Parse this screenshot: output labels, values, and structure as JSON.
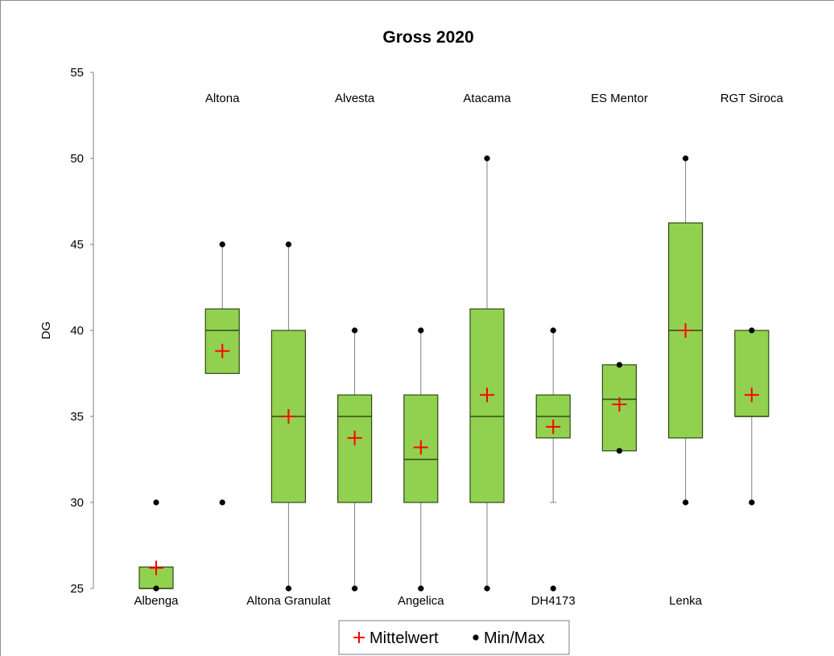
{
  "chart_data": {
    "type": "box",
    "title": "Gross 2020",
    "ylabel": "DG",
    "ylim": [
      25,
      55
    ],
    "yticks": [
      "25",
      "30",
      "35",
      "40",
      "45",
      "50",
      "55"
    ],
    "grid": false,
    "categories": [
      "Albenga",
      "Altona",
      "Altona Granulat",
      "Alvesta",
      "Angelica",
      "Atacama",
      "DH4173",
      "ES Mentor",
      "Lenka",
      "RGT Siroca"
    ],
    "category_label_position": [
      "bottom",
      "top",
      "bottom",
      "top",
      "bottom",
      "top",
      "bottom",
      "top",
      "bottom",
      "top"
    ],
    "boxes": [
      {
        "q1": 25,
        "median": 25,
        "q3": 26.25,
        "whisker_low": 25,
        "whisker_high": 26.25,
        "mean": 26.2,
        "min": 25,
        "max": 30
      },
      {
        "q1": 37.5,
        "median": 40,
        "q3": 41.25,
        "whisker_low": 37.5,
        "whisker_high": 45,
        "mean": 38.8,
        "min": 30,
        "max": 45
      },
      {
        "q1": 30,
        "median": 35,
        "q3": 40,
        "whisker_low": 25,
        "whisker_high": 45,
        "mean": 35,
        "min": 25,
        "max": 45
      },
      {
        "q1": 30,
        "median": 35,
        "q3": 36.25,
        "whisker_low": 25,
        "whisker_high": 40,
        "mean": 33.75,
        "min": 25,
        "max": 40
      },
      {
        "q1": 30,
        "median": 32.5,
        "q3": 36.25,
        "whisker_low": 25,
        "whisker_high": 40,
        "mean": 33.2,
        "min": 25,
        "max": 40
      },
      {
        "q1": 30,
        "median": 35,
        "q3": 41.25,
        "whisker_low": 25,
        "whisker_high": 50,
        "mean": 36.25,
        "min": 25,
        "max": 50
      },
      {
        "q1": 33.75,
        "median": 35,
        "q3": 36.25,
        "whisker_low": 30,
        "whisker_high": 40,
        "mean": 34.4,
        "min": 25,
        "max": 40
      },
      {
        "q1": 33,
        "median": 36,
        "q3": 38,
        "whisker_low": 33,
        "whisker_high": 38,
        "mean": 35.7,
        "min": 33,
        "max": 38
      },
      {
        "q1": 33.75,
        "median": 40,
        "q3": 46.25,
        "whisker_low": 30,
        "whisker_high": 50,
        "mean": 40,
        "min": 30,
        "max": 50
      },
      {
        "q1": 35,
        "median": 35,
        "q3": 40,
        "whisker_low": 30,
        "whisker_high": 40,
        "mean": 36.25,
        "min": 30,
        "max": 40
      }
    ],
    "legend": {
      "placement": "bottom",
      "items": [
        {
          "symbol": "+",
          "label": "Mittelwert",
          "color": "#ff0000"
        },
        {
          "symbol": "•",
          "label": "Min/Max",
          "color": "#000000"
        }
      ]
    },
    "colors": {
      "box_fill": "#92d050",
      "box_stroke": "#2e4a12",
      "mean_marker": "#ff0000",
      "minmax_marker": "#000000",
      "axis": "#7f7f7f"
    }
  }
}
